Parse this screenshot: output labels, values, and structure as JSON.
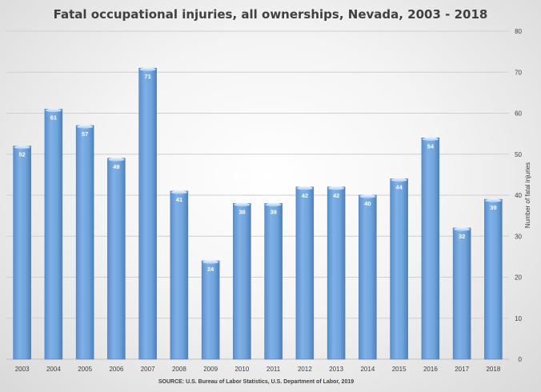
{
  "chart_data": {
    "type": "bar",
    "title": "Fatal occupational injuries, all ownerships, Nevada, 2003 - 2018",
    "categories": [
      "2003",
      "2004",
      "2005",
      "2006",
      "2007",
      "2008",
      "2009",
      "2010",
      "2011",
      "2012",
      "2013",
      "2014",
      "2015",
      "2016",
      "2017",
      "2018"
    ],
    "values": [
      52,
      61,
      57,
      49,
      71,
      41,
      24,
      38,
      38,
      42,
      42,
      40,
      44,
      54,
      32,
      39
    ],
    "ylabel": "Number of fatal injuries",
    "ylim": [
      0,
      80
    ],
    "y_ticks": [
      0,
      10,
      20,
      30,
      40,
      50,
      60,
      70,
      80
    ],
    "y_axis_side": "right",
    "grid": true,
    "source": "SOURCE: U.S. Bureau of Labor Statistics, U.S. Department of Labor, 2019",
    "bar_color": "#6fa4dc"
  }
}
